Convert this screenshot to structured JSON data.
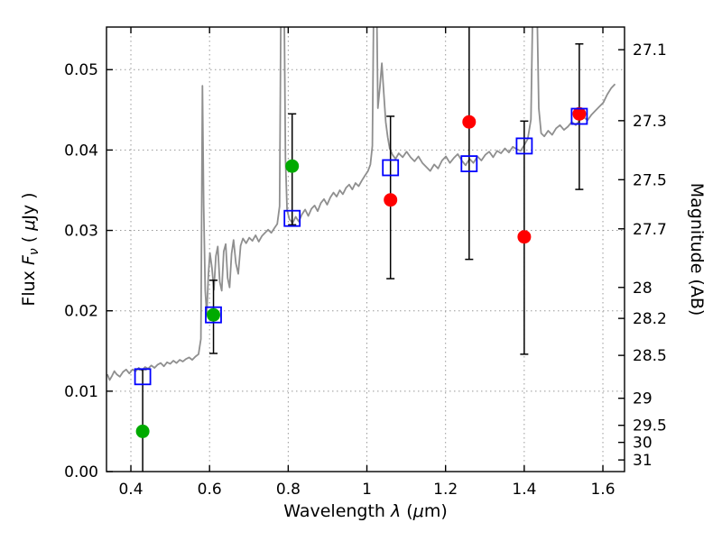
{
  "chart_data": {
    "type": "line",
    "title": "",
    "xlabel_parts": [
      {
        "t": "Wavelength  ",
        "s": "n"
      },
      {
        "t": "λ",
        "s": "i"
      },
      {
        "t": " (",
        "s": "n"
      },
      {
        "t": "μ",
        "s": "i"
      },
      {
        "t": "m)",
        "s": "n"
      }
    ],
    "ylabel_left_parts": [
      {
        "t": "Flux  ",
        "s": "n"
      },
      {
        "t": "F",
        "s": "i"
      },
      {
        "t": "ν",
        "s": "sub"
      },
      {
        "t": "  ( ",
        "s": "n"
      },
      {
        "t": "μ",
        "s": "i"
      },
      {
        "t": "Jy )",
        "s": "n"
      }
    ],
    "ylabel_right": "Magnitude (AB)",
    "xlim": [
      0.338,
      1.655
    ],
    "ylim": [
      0.0,
      0.0553
    ],
    "x_ticks": [
      0.4,
      0.6,
      0.8,
      1.0,
      1.2,
      1.4,
      1.6
    ],
    "x_tick_labels": [
      "0.4",
      "0.6",
      "0.8",
      "1",
      "1.2",
      "1.4",
      "1.6"
    ],
    "y_ticks": [
      0.0,
      0.01,
      0.02,
      0.03,
      0.04,
      0.05
    ],
    "y_tick_labels": [
      "0.00",
      "0.01",
      "0.02",
      "0.03",
      "0.04",
      "0.05"
    ],
    "mag_ticks": [
      "27.1",
      "27.3",
      "27.5",
      "27.7",
      "28",
      "28.2",
      "28.5",
      "29",
      "29.5",
      "30",
      "31"
    ],
    "mag_zeropoint": 23.9,
    "grid": true,
    "series": [
      {
        "name": "model-spectrum",
        "type": "line",
        "color": "#8f8f8f",
        "points": [
          [
            0.34,
            0.0121
          ],
          [
            0.346,
            0.0114
          ],
          [
            0.352,
            0.0119
          ],
          [
            0.358,
            0.0125
          ],
          [
            0.364,
            0.0121
          ],
          [
            0.372,
            0.0118
          ],
          [
            0.38,
            0.0124
          ],
          [
            0.388,
            0.0127
          ],
          [
            0.396,
            0.0122
          ],
          [
            0.404,
            0.0127
          ],
          [
            0.412,
            0.0125
          ],
          [
            0.42,
            0.0129
          ],
          [
            0.428,
            0.0126
          ],
          [
            0.436,
            0.013
          ],
          [
            0.444,
            0.0128
          ],
          [
            0.452,
            0.0132
          ],
          [
            0.46,
            0.0129
          ],
          [
            0.468,
            0.0133
          ],
          [
            0.476,
            0.0135
          ],
          [
            0.484,
            0.0131
          ],
          [
            0.492,
            0.0136
          ],
          [
            0.5,
            0.0134
          ],
          [
            0.508,
            0.0138
          ],
          [
            0.516,
            0.0135
          ],
          [
            0.524,
            0.0139
          ],
          [
            0.532,
            0.0137
          ],
          [
            0.54,
            0.014
          ],
          [
            0.548,
            0.0142
          ],
          [
            0.556,
            0.0139
          ],
          [
            0.564,
            0.0143
          ],
          [
            0.572,
            0.0146
          ],
          [
            0.578,
            0.0165
          ],
          [
            0.582,
            0.048
          ],
          [
            0.585,
            0.033
          ],
          [
            0.589,
            0.0225
          ],
          [
            0.593,
            0.0196
          ],
          [
            0.597,
            0.0245
          ],
          [
            0.601,
            0.0272
          ],
          [
            0.606,
            0.0254
          ],
          [
            0.611,
            0.0226
          ],
          [
            0.616,
            0.0268
          ],
          [
            0.621,
            0.028
          ],
          [
            0.626,
            0.0236
          ],
          [
            0.631,
            0.0225
          ],
          [
            0.636,
            0.0274
          ],
          [
            0.641,
            0.0283
          ],
          [
            0.646,
            0.0241
          ],
          [
            0.651,
            0.0229
          ],
          [
            0.656,
            0.0271
          ],
          [
            0.661,
            0.0288
          ],
          [
            0.667,
            0.0259
          ],
          [
            0.673,
            0.0246
          ],
          [
            0.679,
            0.0281
          ],
          [
            0.685,
            0.029
          ],
          [
            0.693,
            0.0284
          ],
          [
            0.701,
            0.0291
          ],
          [
            0.709,
            0.0287
          ],
          [
            0.717,
            0.0294
          ],
          [
            0.725,
            0.0286
          ],
          [
            0.733,
            0.0293
          ],
          [
            0.741,
            0.0297
          ],
          [
            0.749,
            0.0301
          ],
          [
            0.757,
            0.0297
          ],
          [
            0.765,
            0.0303
          ],
          [
            0.772,
            0.0308
          ],
          [
            0.778,
            0.033
          ],
          [
            0.782,
            0.062
          ],
          [
            0.789,
            0.062
          ],
          [
            0.793,
            0.039
          ],
          [
            0.797,
            0.0325
          ],
          [
            0.803,
            0.0314
          ],
          [
            0.811,
            0.0309
          ],
          [
            0.819,
            0.0317
          ],
          [
            0.827,
            0.0311
          ],
          [
            0.835,
            0.032
          ],
          [
            0.843,
            0.0326
          ],
          [
            0.851,
            0.0318
          ],
          [
            0.859,
            0.0327
          ],
          [
            0.867,
            0.0331
          ],
          [
            0.875,
            0.0324
          ],
          [
            0.883,
            0.0334
          ],
          [
            0.891,
            0.0339
          ],
          [
            0.899,
            0.0332
          ],
          [
            0.907,
            0.0341
          ],
          [
            0.915,
            0.0347
          ],
          [
            0.923,
            0.0342
          ],
          [
            0.931,
            0.035
          ],
          [
            0.939,
            0.0345
          ],
          [
            0.947,
            0.0353
          ],
          [
            0.955,
            0.0357
          ],
          [
            0.963,
            0.0351
          ],
          [
            0.971,
            0.0359
          ],
          [
            0.979,
            0.0355
          ],
          [
            0.987,
            0.0362
          ],
          [
            0.995,
            0.0368
          ],
          [
            1.003,
            0.0374
          ],
          [
            1.009,
            0.0382
          ],
          [
            1.014,
            0.0405
          ],
          [
            1.018,
            0.062
          ],
          [
            1.024,
            0.062
          ],
          [
            1.028,
            0.0452
          ],
          [
            1.033,
            0.0478
          ],
          [
            1.038,
            0.0508
          ],
          [
            1.043,
            0.047
          ],
          [
            1.048,
            0.0435
          ],
          [
            1.053,
            0.0416
          ],
          [
            1.058,
            0.0402
          ],
          [
            1.065,
            0.0394
          ],
          [
            1.073,
            0.0389
          ],
          [
            1.081,
            0.0396
          ],
          [
            1.091,
            0.0391
          ],
          [
            1.101,
            0.0398
          ],
          [
            1.111,
            0.0391
          ],
          [
            1.121,
            0.0386
          ],
          [
            1.131,
            0.0392
          ],
          [
            1.141,
            0.0384
          ],
          [
            1.151,
            0.0379
          ],
          [
            1.161,
            0.0374
          ],
          [
            1.171,
            0.0382
          ],
          [
            1.181,
            0.0377
          ],
          [
            1.191,
            0.0387
          ],
          [
            1.201,
            0.0392
          ],
          [
            1.211,
            0.0384
          ],
          [
            1.221,
            0.039
          ],
          [
            1.231,
            0.0395
          ],
          [
            1.241,
            0.0387
          ],
          [
            1.251,
            0.0381
          ],
          [
            1.261,
            0.0389
          ],
          [
            1.271,
            0.0384
          ],
          [
            1.281,
            0.0392
          ],
          [
            1.291,
            0.0387
          ],
          [
            1.301,
            0.0394
          ],
          [
            1.311,
            0.0398
          ],
          [
            1.321,
            0.0391
          ],
          [
            1.331,
            0.0399
          ],
          [
            1.341,
            0.0396
          ],
          [
            1.351,
            0.0402
          ],
          [
            1.361,
            0.0397
          ],
          [
            1.371,
            0.0404
          ],
          [
            1.381,
            0.0401
          ],
          [
            1.391,
            0.0399
          ],
          [
            1.401,
            0.0407
          ],
          [
            1.409,
            0.0414
          ],
          [
            1.417,
            0.0438
          ],
          [
            1.423,
            0.062
          ],
          [
            1.431,
            0.062
          ],
          [
            1.437,
            0.0452
          ],
          [
            1.443,
            0.0421
          ],
          [
            1.451,
            0.0417
          ],
          [
            1.461,
            0.0424
          ],
          [
            1.471,
            0.0419
          ],
          [
            1.481,
            0.0427
          ],
          [
            1.491,
            0.0431
          ],
          [
            1.501,
            0.0425
          ],
          [
            1.511,
            0.0429
          ],
          [
            1.521,
            0.0435
          ],
          [
            1.531,
            0.0431
          ],
          [
            1.541,
            0.0437
          ],
          [
            1.551,
            0.0441
          ],
          [
            1.561,
            0.0437
          ],
          [
            1.571,
            0.0444
          ],
          [
            1.581,
            0.0449
          ],
          [
            1.591,
            0.0454
          ],
          [
            1.601,
            0.0459
          ],
          [
            1.611,
            0.0469
          ],
          [
            1.621,
            0.0477
          ],
          [
            1.631,
            0.0482
          ]
        ]
      },
      {
        "name": "observed-green",
        "type": "scatter",
        "marker": "circle",
        "color": "#00aa00",
        "points": [
          [
            0.43,
            0.005
          ],
          [
            0.61,
            0.0195
          ],
          [
            0.81,
            0.038
          ]
        ]
      },
      {
        "name": "observed-red",
        "type": "scatter",
        "marker": "circle",
        "color": "#ff0000",
        "points": [
          [
            1.06,
            0.0338
          ],
          [
            1.26,
            0.0435
          ],
          [
            1.4,
            0.0292
          ],
          [
            1.54,
            0.0445
          ]
        ]
      },
      {
        "name": "model-photometry",
        "type": "scatter",
        "marker": "open-square",
        "color": "#0000ff",
        "points": [
          [
            0.43,
            0.0118
          ],
          [
            0.61,
            0.0195
          ],
          [
            0.81,
            0.0315
          ],
          [
            1.06,
            0.0378
          ],
          [
            1.26,
            0.0383
          ],
          [
            1.4,
            0.0405
          ],
          [
            1.54,
            0.0442
          ]
        ]
      }
    ],
    "error_bars": [
      {
        "x": 0.43,
        "lo": 0.0,
        "hi": 0.0127,
        "cap_lo": false,
        "cap_hi": true
      },
      {
        "x": 0.61,
        "lo": 0.0147,
        "hi": 0.0238,
        "cap_lo": true,
        "cap_hi": true
      },
      {
        "x": 0.81,
        "lo": 0.0307,
        "hi": 0.0445,
        "cap_lo": true,
        "cap_hi": true
      },
      {
        "x": 1.06,
        "lo": 0.024,
        "hi": 0.0442,
        "cap_lo": true,
        "cap_hi": true
      },
      {
        "x": 1.26,
        "lo": 0.0264,
        "hi": 0.06,
        "cap_lo": true,
        "cap_hi": false
      },
      {
        "x": 1.4,
        "lo": 0.0146,
        "hi": 0.0436,
        "cap_lo": true,
        "cap_hi": true
      },
      {
        "x": 1.54,
        "lo": 0.0351,
        "hi": 0.0532,
        "cap_lo": true,
        "cap_hi": true
      }
    ],
    "plot_style": {
      "grid_color": "#999999",
      "border_color": "#000000",
      "background": "#ffffff"
    }
  }
}
